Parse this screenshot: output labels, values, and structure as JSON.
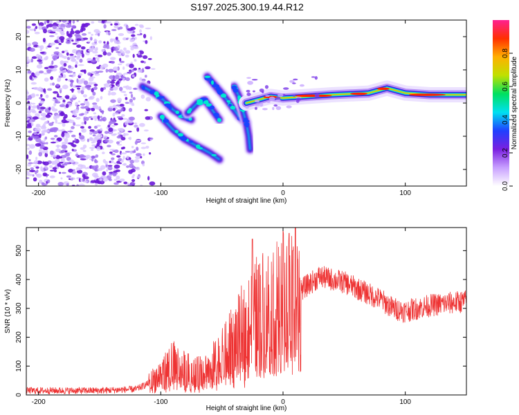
{
  "title": "S197.2025.300.19.44.R12",
  "chart_data": [
    {
      "type": "heatmap",
      "name": "spectrogram",
      "xlabel": "Height of straight line (km)",
      "ylabel": "Frequency (Hz)",
      "xlim": [
        -210,
        150
      ],
      "ylim": [
        -25,
        25
      ],
      "xticks": [
        -200,
        -100,
        0,
        100
      ],
      "yticks": [
        -20,
        -10,
        0,
        10,
        20
      ],
      "features": [
        {
          "kind": "noise",
          "x_range": [
            -210,
            -110
          ],
          "y_range": [
            -25,
            25
          ]
        },
        {
          "kind": "track",
          "points": [
            [
              -115,
              5
            ],
            [
              -105,
              3
            ],
            [
              -98,
              1
            ],
            [
              -90,
              -2
            ],
            [
              -82,
              -4
            ],
            [
              -75,
              -5
            ]
          ]
        },
        {
          "kind": "track",
          "points": [
            [
              -78,
              -3
            ],
            [
              -70,
              0
            ],
            [
              -64,
              1
            ],
            [
              -58,
              -2
            ],
            [
              -52,
              -5
            ]
          ]
        },
        {
          "kind": "track",
          "points": [
            [
              -100,
              -4
            ],
            [
              -90,
              -8
            ],
            [
              -80,
              -11
            ],
            [
              -70,
              -13
            ],
            [
              -60,
              -15
            ],
            [
              -52,
              -17
            ]
          ]
        },
        {
          "kind": "track",
          "points": [
            [
              -62,
              8
            ],
            [
              -55,
              5
            ],
            [
              -48,
              2
            ],
            [
              -42,
              -1
            ],
            [
              -36,
              -4
            ],
            [
              -30,
              -6
            ]
          ]
        },
        {
          "kind": "track",
          "points": [
            [
              -40,
              5
            ],
            [
              -36,
              2
            ],
            [
              -33,
              -2
            ],
            [
              -30,
              -6
            ],
            [
              -28,
              -10
            ],
            [
              -27,
              -14
            ]
          ]
        },
        {
          "kind": "band",
          "points": [
            [
              -30,
              0
            ],
            [
              -20,
              1
            ],
            [
              -10,
              2
            ],
            [
              0,
              1.5
            ],
            [
              20,
              2
            ],
            [
              40,
              2.5
            ],
            [
              70,
              3
            ],
            [
              85,
              4.5
            ],
            [
              100,
              3
            ],
            [
              120,
              2.5
            ],
            [
              150,
              2.5
            ]
          ]
        }
      ]
    },
    {
      "type": "line",
      "name": "snr",
      "xlabel": "Height of straight line (km)",
      "ylabel": "SNR (10 * v/v)",
      "xlim": [
        -210,
        150
      ],
      "ylim": [
        0,
        580
      ],
      "xticks": [
        -200,
        -100,
        0,
        100
      ],
      "yticks": [
        0,
        100,
        200,
        300,
        400,
        500
      ],
      "color": "#ee3333",
      "envelope": [
        [
          -210,
          15
        ],
        [
          -150,
          15
        ],
        [
          -120,
          20
        ],
        [
          -110,
          40
        ],
        [
          -100,
          70
        ],
        [
          -90,
          100
        ],
        [
          -80,
          80
        ],
        [
          -70,
          70
        ],
        [
          -60,
          90
        ],
        [
          -50,
          120
        ],
        [
          -40,
          170
        ],
        [
          -30,
          220
        ],
        [
          -25,
          260
        ],
        [
          -20,
          280
        ],
        [
          -10,
          300
        ],
        [
          0,
          320
        ],
        [
          10,
          350
        ],
        [
          20,
          380
        ],
        [
          30,
          410
        ],
        [
          40,
          400
        ],
        [
          50,
          390
        ],
        [
          60,
          370
        ],
        [
          70,
          350
        ],
        [
          80,
          330
        ],
        [
          90,
          300
        ],
        [
          100,
          290
        ],
        [
          110,
          300
        ],
        [
          120,
          310
        ],
        [
          130,
          315
        ],
        [
          140,
          320
        ],
        [
          150,
          325
        ]
      ],
      "spikes": [
        [
          -25,
          540
        ],
        [
          -20,
          450
        ],
        [
          5,
          560
        ],
        [
          8,
          500
        ],
        [
          10,
          580
        ],
        [
          12,
          470
        ]
      ]
    }
  ],
  "colorbar": {
    "label": "Normalized spectral amplitude",
    "ticks": [
      "0.0",
      "0.2",
      "0.4",
      "0.6",
      "0.8"
    ],
    "tick_values": [
      0,
      0.2,
      0.4,
      0.6,
      0.8
    ],
    "range": [
      0,
      1
    ],
    "colors": [
      "#ffffff",
      "#c8a0ff",
      "#7a20e0",
      "#2040ff",
      "#00e0f0",
      "#00e060",
      "#c0e000",
      "#ffb000",
      "#ff3000",
      "#ff2090"
    ]
  }
}
